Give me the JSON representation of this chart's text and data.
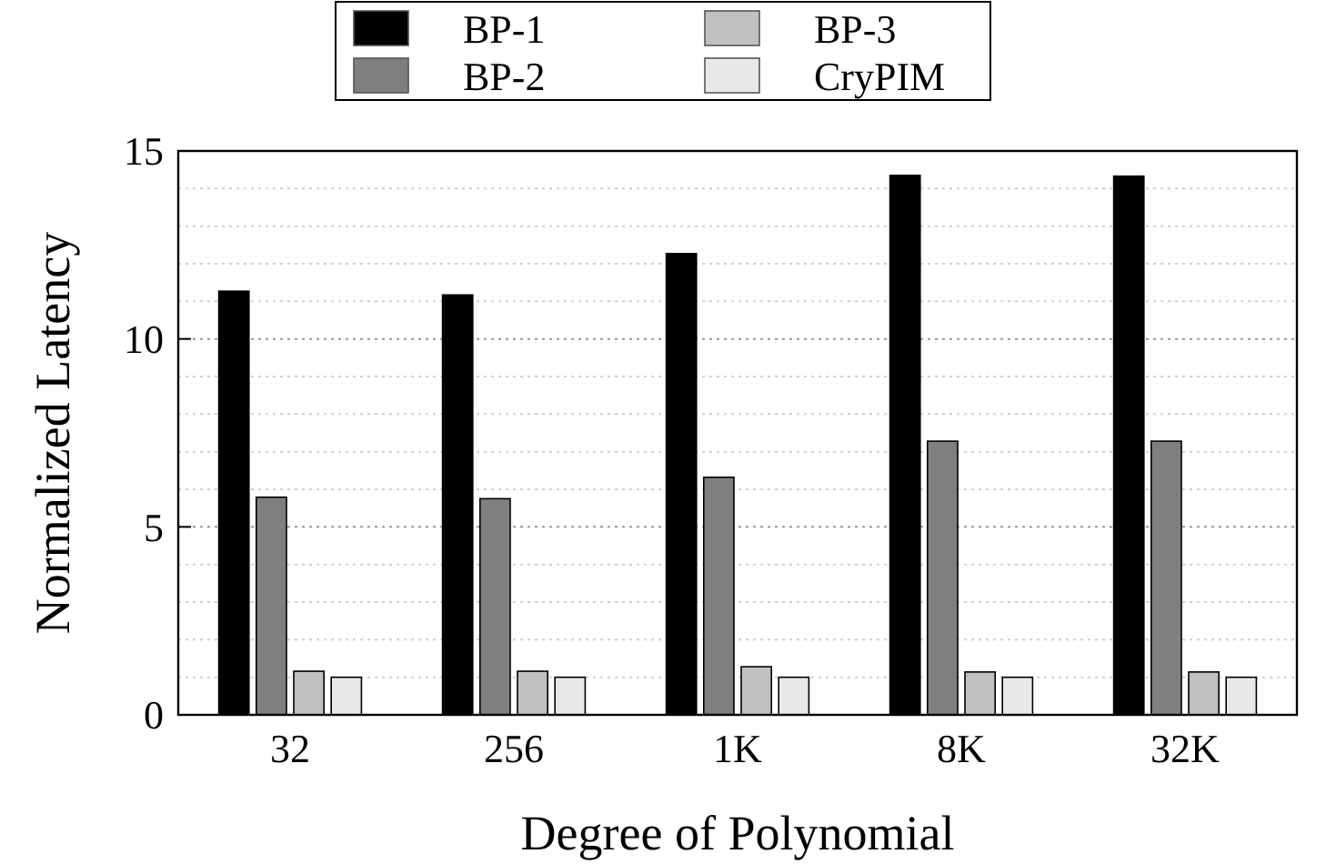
{
  "chart_data": {
    "type": "bar",
    "xlabel": "Degree of Polynomial",
    "ylabel": "Normalized Latency",
    "categories": [
      "32",
      "256",
      "1K",
      "8K",
      "32K"
    ],
    "series": [
      {
        "name": "BP-1",
        "color": "#000000",
        "values": [
          11.27,
          11.17,
          12.27,
          14.35,
          14.33
        ]
      },
      {
        "name": "BP-2",
        "color": "#7f7f7f",
        "values": [
          5.79,
          5.75,
          6.32,
          7.28,
          7.28
        ]
      },
      {
        "name": "BP-3",
        "color": "#c0c0c0",
        "values": [
          1.16,
          1.16,
          1.28,
          1.14,
          1.14
        ]
      },
      {
        "name": "CryPIM",
        "color": "#e8e8e8",
        "values": [
          1.0,
          1.0,
          1.0,
          1.0,
          1.0
        ]
      }
    ],
    "ylim": [
      0,
      15
    ],
    "yticks": [
      0,
      {
        "value": 1,
        "label": null
      },
      {
        "value": 2,
        "label": null
      },
      {
        "value": 3,
        "label": null
      },
      {
        "value": 4,
        "label": null
      },
      5,
      {
        "value": 6,
        "label": null
      },
      {
        "value": 7,
        "label": null
      },
      {
        "value": 8,
        "label": null
      },
      {
        "value": 9,
        "label": null
      },
      10,
      {
        "value": 11,
        "label": null
      },
      {
        "value": 12,
        "label": null
      },
      {
        "value": 13,
        "label": null
      },
      {
        "value": 14,
        "label": null
      },
      15
    ],
    "grid": "y",
    "legend": "top"
  }
}
